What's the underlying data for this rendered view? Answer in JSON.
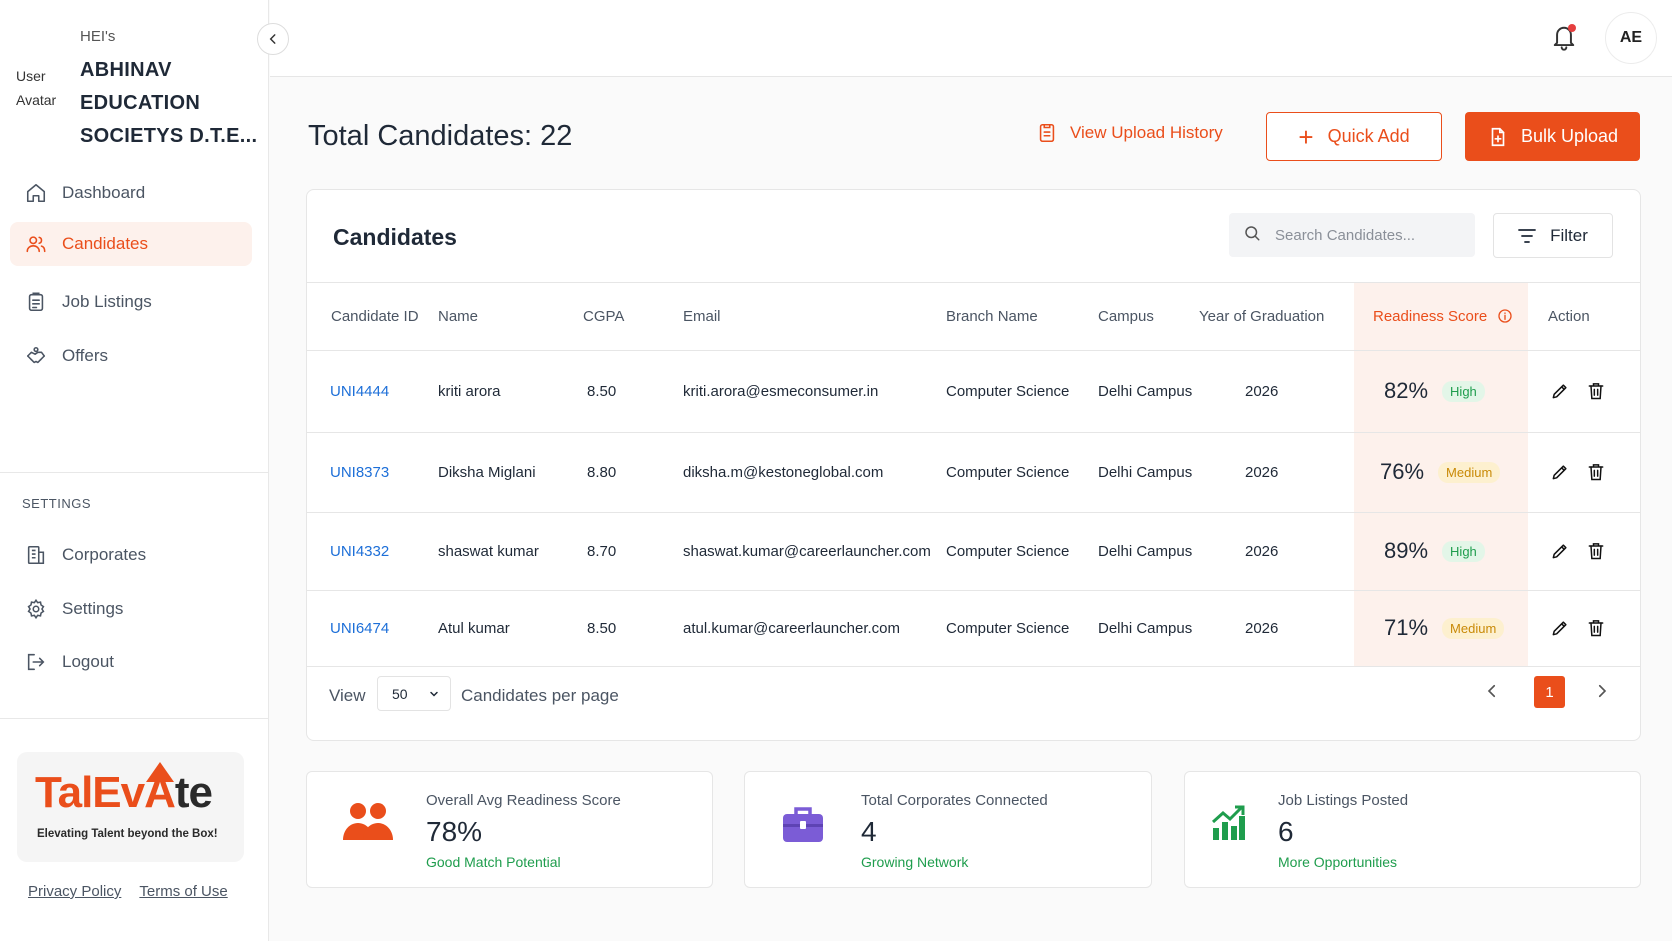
{
  "sidebar": {
    "avatar_alt": "User Avatar",
    "org_prefix": "HEI's",
    "org_name": "ABHINAV EDUCATION SOCIETYS D.T.E...",
    "nav": [
      {
        "label": "Dashboard",
        "icon": "home-icon"
      },
      {
        "label": "Candidates",
        "icon": "users-icon",
        "active": true
      },
      {
        "label": "Job Listings",
        "icon": "clipboard-icon"
      },
      {
        "label": "Offers",
        "icon": "handshake-icon"
      }
    ],
    "settings_label": "SETTINGS",
    "settings_nav": [
      {
        "label": "Corporates",
        "icon": "building-icon"
      },
      {
        "label": "Settings",
        "icon": "gear-icon"
      },
      {
        "label": "Logout",
        "icon": "logout-icon"
      }
    ],
    "logo": {
      "part1": "TalEv",
      "part2": "te",
      "mark": "A",
      "tagline": "Elevating Talent beyond the Box!"
    },
    "footer": {
      "privacy": "Privacy Policy",
      "terms": "Terms of Use"
    }
  },
  "topbar": {
    "user_initials": "AE"
  },
  "header": {
    "title": "Total Candidates: 22",
    "upload_history": "View Upload History",
    "quick_add": "Quick Add",
    "bulk_upload": "Bulk Upload"
  },
  "candidates": {
    "title": "Candidates",
    "search_placeholder": "Search Candidates...",
    "filter_label": "Filter",
    "columns": [
      "Candidate ID",
      "Name",
      "CGPA",
      "Email",
      "Branch Name",
      "Campus",
      "Year of Graduation",
      "Readiness Score",
      "Action"
    ],
    "rows": [
      {
        "id": "UNI4444",
        "name": "kriti arora",
        "cgpa": "8.50",
        "email": "kriti.arora@esmeconsumer.in",
        "branch": "Computer Science",
        "campus": "Delhi Campus",
        "year": "2026",
        "score": "82%",
        "level": "High"
      },
      {
        "id": "UNI8373",
        "name": "Diksha Miglani",
        "cgpa": "8.80",
        "email": "diksha.m@kestoneglobal.com",
        "branch": "Computer Science",
        "campus": "Delhi Campus",
        "year": "2026",
        "score": "76%",
        "level": "Medium"
      },
      {
        "id": "UNI4332",
        "name": "shaswat kumar",
        "cgpa": "8.70",
        "email": "shaswat.kumar@careerlauncher.com",
        "branch": "Computer Science",
        "campus": "Delhi Campus",
        "year": "2026",
        "score": "89%",
        "level": "High"
      },
      {
        "id": "UNI6474",
        "name": "Atul kumar",
        "cgpa": "8.50",
        "email": "atul.kumar@careerlauncher.com",
        "branch": "Computer Science",
        "campus": "Delhi Campus",
        "year": "2026",
        "score": "71%",
        "level": "Medium"
      }
    ],
    "pagination": {
      "view_label": "View",
      "per_page_value": "50",
      "per_page_label": "Candidates per page",
      "current_page": "1"
    }
  },
  "stats": [
    {
      "label": "Overall Avg Readiness Score",
      "value": "78%",
      "sub": "Good Match Potential",
      "icon": "users-icon",
      "color": "#ea4e1b"
    },
    {
      "label": "Total Corporates Connected",
      "value": "4",
      "sub": "Growing Network",
      "icon": "briefcase-icon",
      "color": "#7b5cd6"
    },
    {
      "label": "Job Listings Posted",
      "value": "6",
      "sub": "More Opportunities",
      "icon": "chart-up-icon",
      "color": "#1f9d4d"
    }
  ],
  "colors": {
    "accent": "#ea4e1b",
    "link": "#1d6fd8",
    "success": "#1f9d4d",
    "warning": "#c98a07"
  }
}
